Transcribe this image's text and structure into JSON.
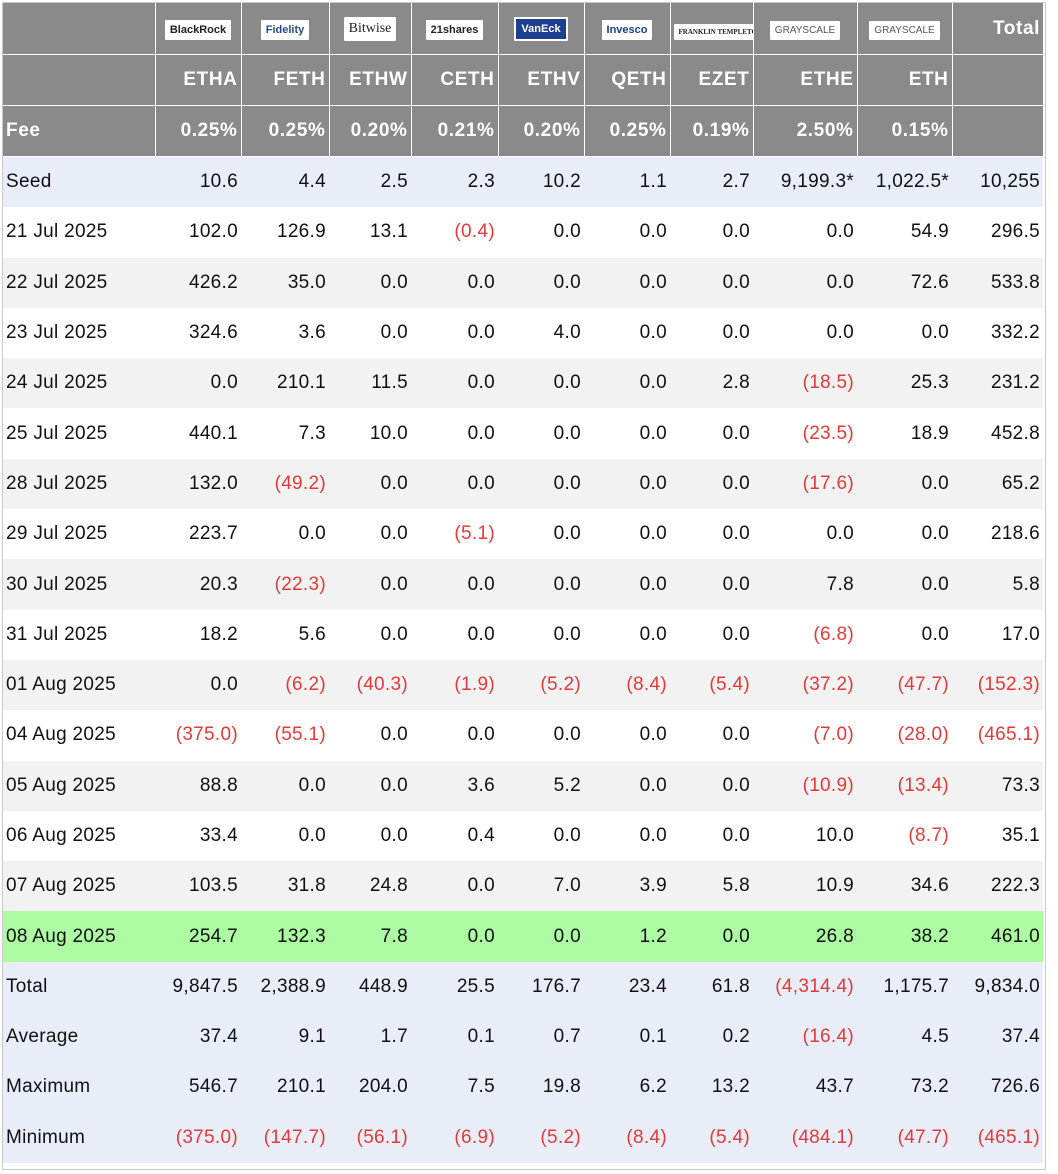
{
  "providers": [
    "BlackRock",
    "Fidelity",
    "Bitwise",
    "21shares",
    "VanEck",
    "Invesco",
    "FRANKLIN TEMPLETON",
    "GRAYSCALE",
    "GRAYSCALE"
  ],
  "total_header": "Total",
  "tickers": [
    "ETHA",
    "FETH",
    "ETHW",
    "CETH",
    "ETHV",
    "QETH",
    "EZET",
    "ETHE",
    "ETH"
  ],
  "fee_label": "Fee",
  "fees": [
    "0.25%",
    "0.25%",
    "0.20%",
    "0.21%",
    "0.20%",
    "0.25%",
    "0.19%",
    "2.50%",
    "0.15%"
  ],
  "seed": {
    "label": "Seed",
    "values": [
      "10.6",
      "4.4",
      "2.5",
      "2.3",
      "10.2",
      "1.1",
      "2.7",
      "9,199.3*",
      "1,022.5*",
      "10,255"
    ]
  },
  "rows": [
    {
      "date": "21 Jul 2025",
      "values": [
        "102.0",
        "126.9",
        "13.1",
        "(0.4)",
        "0.0",
        "0.0",
        "0.0",
        "0.0",
        "54.9",
        "296.5"
      ]
    },
    {
      "date": "22 Jul 2025",
      "values": [
        "426.2",
        "35.0",
        "0.0",
        "0.0",
        "0.0",
        "0.0",
        "0.0",
        "0.0",
        "72.6",
        "533.8"
      ]
    },
    {
      "date": "23 Jul 2025",
      "values": [
        "324.6",
        "3.6",
        "0.0",
        "0.0",
        "4.0",
        "0.0",
        "0.0",
        "0.0",
        "0.0",
        "332.2"
      ]
    },
    {
      "date": "24 Jul 2025",
      "values": [
        "0.0",
        "210.1",
        "11.5",
        "0.0",
        "0.0",
        "0.0",
        "2.8",
        "(18.5)",
        "25.3",
        "231.2"
      ]
    },
    {
      "date": "25 Jul 2025",
      "values": [
        "440.1",
        "7.3",
        "10.0",
        "0.0",
        "0.0",
        "0.0",
        "0.0",
        "(23.5)",
        "18.9",
        "452.8"
      ]
    },
    {
      "date": "28 Jul 2025",
      "values": [
        "132.0",
        "(49.2)",
        "0.0",
        "0.0",
        "0.0",
        "0.0",
        "0.0",
        "(17.6)",
        "0.0",
        "65.2"
      ]
    },
    {
      "date": "29 Jul 2025",
      "values": [
        "223.7",
        "0.0",
        "0.0",
        "(5.1)",
        "0.0",
        "0.0",
        "0.0",
        "0.0",
        "0.0",
        "218.6"
      ]
    },
    {
      "date": "30 Jul 2025",
      "values": [
        "20.3",
        "(22.3)",
        "0.0",
        "0.0",
        "0.0",
        "0.0",
        "0.0",
        "7.8",
        "0.0",
        "5.8"
      ]
    },
    {
      "date": "31 Jul 2025",
      "values": [
        "18.2",
        "5.6",
        "0.0",
        "0.0",
        "0.0",
        "0.0",
        "0.0",
        "(6.8)",
        "0.0",
        "17.0"
      ]
    },
    {
      "date": "01 Aug 2025",
      "values": [
        "0.0",
        "(6.2)",
        "(40.3)",
        "(1.9)",
        "(5.2)",
        "(8.4)",
        "(5.4)",
        "(37.2)",
        "(47.7)",
        "(152.3)"
      ]
    },
    {
      "date": "04 Aug 2025",
      "values": [
        "(375.0)",
        "(55.1)",
        "0.0",
        "0.0",
        "0.0",
        "0.0",
        "0.0",
        "(7.0)",
        "(28.0)",
        "(465.1)"
      ]
    },
    {
      "date": "05 Aug 2025",
      "values": [
        "88.8",
        "0.0",
        "0.0",
        "3.6",
        "5.2",
        "0.0",
        "0.0",
        "(10.9)",
        "(13.4)",
        "73.3"
      ]
    },
    {
      "date": "06 Aug 2025",
      "values": [
        "33.4",
        "0.0",
        "0.0",
        "0.4",
        "0.0",
        "0.0",
        "0.0",
        "10.0",
        "(8.7)",
        "35.1"
      ]
    },
    {
      "date": "07 Aug 2025",
      "values": [
        "103.5",
        "31.8",
        "24.8",
        "0.0",
        "7.0",
        "3.9",
        "5.8",
        "10.9",
        "34.6",
        "222.3"
      ]
    },
    {
      "date": "08 Aug 2025",
      "values": [
        "254.7",
        "132.3",
        "7.8",
        "0.0",
        "0.0",
        "1.2",
        "0.0",
        "26.8",
        "38.2",
        "461.0"
      ],
      "highlight": true
    }
  ],
  "summary": [
    {
      "label": "Total",
      "values": [
        "9,847.5",
        "2,388.9",
        "448.9",
        "25.5",
        "176.7",
        "23.4",
        "61.8",
        "(4,314.4)",
        "1,175.7",
        "9,834.0"
      ]
    },
    {
      "label": "Average",
      "values": [
        "37.4",
        "9.1",
        "1.7",
        "0.1",
        "0.7",
        "0.1",
        "0.2",
        "(16.4)",
        "4.5",
        "37.4"
      ]
    },
    {
      "label": "Maximum",
      "values": [
        "546.7",
        "210.1",
        "204.0",
        "7.5",
        "19.8",
        "6.2",
        "13.2",
        "43.7",
        "73.2",
        "726.6"
      ]
    },
    {
      "label": "Minimum",
      "values": [
        "(375.0)",
        "(147.7)",
        "(56.1)",
        "(6.9)",
        "(5.2)",
        "(8.4)",
        "(5.4)",
        "(484.1)",
        "(47.7)",
        "(465.1)"
      ]
    }
  ],
  "colors": {
    "header_bg": "#8a8a8a",
    "negative": "#e03a3a",
    "highlight_row": "#adfca3",
    "seed_summary_bg": "#e8edf8",
    "stripe": "#f2f2f2"
  }
}
